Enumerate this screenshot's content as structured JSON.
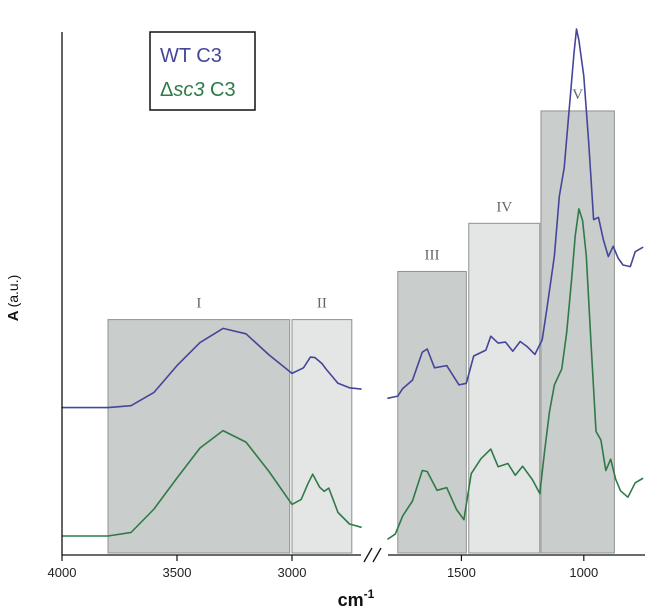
{
  "chart_data": {
    "type": "line",
    "xlabel_main": "cm",
    "xlabel_sup": "-1",
    "ylabel_main": "A",
    "ylabel_unit": "(a.u.)",
    "x_reversed": true,
    "axis_break": true,
    "x_panels": [
      {
        "range": [
          4000,
          2700
        ],
        "ticks": [
          4000,
          3500,
          3000
        ]
      },
      {
        "range": [
          1800,
          750
        ],
        "ticks": [
          1500,
          1000
        ]
      }
    ],
    "tick_labels": [
      "4000",
      "3500",
      "3000",
      "1500",
      "1000"
    ],
    "legend": {
      "position": "top-left",
      "entries": [
        {
          "prefix": "WT",
          "italic": "",
          "suffix": " C3",
          "color": "#45469a"
        },
        {
          "prefix": "Δ",
          "italic": "sc3",
          "suffix": " C3",
          "color": "#2f7a48"
        }
      ]
    },
    "regions": [
      {
        "label": "I",
        "x_range": [
          3800,
          3010
        ],
        "height": 0.44,
        "color": "#c9cdcb"
      },
      {
        "label": "II",
        "x_range": [
          3000,
          2740
        ],
        "height": 0.44,
        "color": "#e4e5e5"
      },
      {
        "label": "III",
        "x_range": [
          1760,
          1480
        ],
        "height": 0.53,
        "color": "#c9cdcb"
      },
      {
        "label": "IV",
        "x_range": [
          1470,
          1180
        ],
        "height": 0.62,
        "color": "#e4e5e5"
      },
      {
        "label": "V",
        "x_range": [
          1175,
          875
        ],
        "height": 0.83,
        "color": "#c9cdcb"
      }
    ],
    "series": [
      {
        "name": "WT C3",
        "color": "#45469a",
        "panels": [
          [
            [
              4000,
              0.2755
            ],
            [
              3800,
              0.2755
            ],
            [
              3700,
              0.279
            ],
            [
              3600,
              0.304
            ],
            [
              3500,
              0.354
            ],
            [
              3400,
              0.397
            ],
            [
              3300,
              0.4235
            ],
            [
              3200,
              0.4135
            ],
            [
              3100,
              0.374
            ],
            [
              3000,
              0.3395
            ],
            [
              2950,
              0.35
            ],
            [
              2920,
              0.37
            ],
            [
              2900,
              0.369
            ],
            [
              2870,
              0.358
            ],
            [
              2850,
              0.3465
            ],
            [
              2800,
              0.321
            ],
            [
              2750,
              0.3125
            ],
            [
              2700,
              0.31
            ]
          ],
          [
            [
              1800,
              0.293
            ],
            [
              1760,
              0.297
            ],
            [
              1740,
              0.311
            ],
            [
              1700,
              0.327
            ],
            [
              1660,
              0.379
            ],
            [
              1640,
              0.385
            ],
            [
              1610,
              0.35
            ],
            [
              1560,
              0.354
            ],
            [
              1510,
              0.318
            ],
            [
              1480,
              0.321
            ],
            [
              1450,
              0.372
            ],
            [
              1400,
              0.383
            ],
            [
              1380,
              0.409
            ],
            [
              1350,
              0.396
            ],
            [
              1320,
              0.398
            ],
            [
              1290,
              0.381
            ],
            [
              1260,
              0.399
            ],
            [
              1230,
              0.389
            ],
            [
              1200,
              0.375
            ],
            [
              1170,
              0.402
            ],
            [
              1150,
              0.463
            ],
            [
              1120,
              0.559
            ],
            [
              1100,
              0.67
            ],
            [
              1080,
              0.724
            ],
            [
              1060,
              0.831
            ],
            [
              1040,
              0.938
            ],
            [
              1030,
              0.983
            ],
            [
              1020,
              0.962
            ],
            [
              1000,
              0.895
            ],
            [
              980,
              0.771
            ],
            [
              960,
              0.627
            ],
            [
              940,
              0.631
            ],
            [
              920,
              0.589
            ],
            [
              900,
              0.558
            ],
            [
              880,
              0.577
            ],
            [
              860,
              0.555
            ],
            [
              840,
              0.542
            ],
            [
              810,
              0.539
            ],
            [
              790,
              0.567
            ],
            [
              760,
              0.575
            ]
          ]
        ]
      },
      {
        "name": "Δsc3 C3",
        "color": "#2f7a48",
        "panels": [
          [
            [
              4000,
              0.0355
            ],
            [
              3800,
              0.0355
            ],
            [
              3700,
              0.042
            ],
            [
              3600,
              0.086
            ],
            [
              3500,
              0.144
            ],
            [
              3400,
              0.2
            ],
            [
              3300,
              0.2325
            ],
            [
              3200,
              0.211
            ],
            [
              3100,
              0.156
            ],
            [
              3000,
              0.0945
            ],
            [
              2960,
              0.104
            ],
            [
              2930,
              0.134
            ],
            [
              2910,
              0.151
            ],
            [
              2880,
              0.127
            ],
            [
              2860,
              0.119
            ],
            [
              2840,
              0.125
            ],
            [
              2800,
              0.0795
            ],
            [
              2750,
              0.058
            ],
            [
              2700,
              0.052
            ]
          ],
          [
            [
              1800,
              0.03
            ],
            [
              1770,
              0.039
            ],
            [
              1740,
              0.073
            ],
            [
              1700,
              0.101
            ],
            [
              1660,
              0.158
            ],
            [
              1640,
              0.156
            ],
            [
              1600,
              0.121
            ],
            [
              1560,
              0.126
            ],
            [
              1520,
              0.085
            ],
            [
              1490,
              0.066
            ],
            [
              1460,
              0.152
            ],
            [
              1420,
              0.18
            ],
            [
              1380,
              0.198
            ],
            [
              1350,
              0.165
            ],
            [
              1310,
              0.171
            ],
            [
              1280,
              0.149
            ],
            [
              1250,
              0.166
            ],
            [
              1210,
              0.141
            ],
            [
              1180,
              0.115
            ],
            [
              1160,
              0.194
            ],
            [
              1140,
              0.268
            ],
            [
              1120,
              0.318
            ],
            [
              1090,
              0.348
            ],
            [
              1070,
              0.416
            ],
            [
              1050,
              0.515
            ],
            [
              1035,
              0.596
            ],
            [
              1020,
              0.647
            ],
            [
              1005,
              0.625
            ],
            [
              990,
              0.559
            ],
            [
              970,
              0.39
            ],
            [
              950,
              0.231
            ],
            [
              930,
              0.215
            ],
            [
              910,
              0.158
            ],
            [
              890,
              0.179
            ],
            [
              870,
              0.142
            ],
            [
              850,
              0.12
            ],
            [
              820,
              0.108
            ],
            [
              790,
              0.135
            ],
            [
              760,
              0.143
            ]
          ]
        ]
      }
    ]
  }
}
